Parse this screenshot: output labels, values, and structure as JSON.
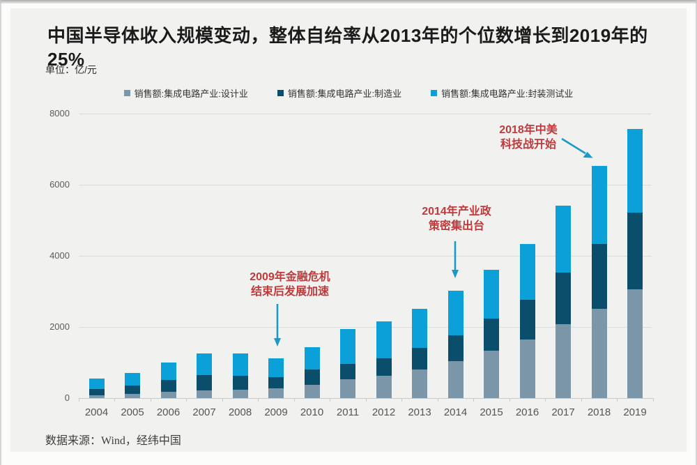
{
  "title": "中国半导体收入规模变动，整体自给率从2013年的个位数增长到2019年的25%",
  "unit_label": "单位：亿/元",
  "source_note": "数据来源：Wind，经纬中国",
  "colors": {
    "card_background": "#f1f1ef",
    "title_text": "#1b1b1b",
    "axis_text": "#5c5c5c",
    "grid_line": "#dcdcda",
    "annotation_red": "#c0393b",
    "arrow_cyan": "#1a9ac4",
    "series_design": "#7b96a8",
    "series_manufacturing": "#0b4e6b",
    "series_packaging": "#0ba0d8",
    "source_text": "#3d3d3d"
  },
  "chart_data": {
    "type": "bar",
    "stacked": true,
    "title": "中国半导体收入规模变动，整体自给率从2013年的个位数增长到2019年的25%",
    "unit": "亿/元",
    "xlabel": "",
    "ylabel": "",
    "ylim": [
      0,
      8000
    ],
    "yticks": [
      0,
      2000,
      4000,
      6000,
      8000
    ],
    "grid": true,
    "legend_position": "top",
    "categories": [
      "2004",
      "2005",
      "2006",
      "2007",
      "2008",
      "2009",
      "2010",
      "2011",
      "2012",
      "2013",
      "2014",
      "2015",
      "2016",
      "2017",
      "2018",
      "2019"
    ],
    "series": [
      {
        "name": "销售额:集成电路产业:设计业",
        "color": "#7b96a8",
        "values": [
          81.5,
          124.3,
          186.2,
          225.7,
          235.3,
          269.9,
          363.8,
          526.4,
          621.7,
          808.8,
          1047.4,
          1325.0,
          1644.3,
          2073.5,
          2519.3,
          3063.5
        ]
      },
      {
        "name": "销售额:集成电路产业:制造业",
        "color": "#0b4e6b",
        "values": [
          181.2,
          232.9,
          323.1,
          419.7,
          391.6,
          319.7,
          447.1,
          430.5,
          501.1,
          600.9,
          712.1,
          900.8,
          1126.9,
          1448.1,
          1818.2,
          2149.1
        ]
      },
      {
        "name": "销售额:集成电路产业:封装测试业",
        "color": "#0ba0d8",
        "values": [
          282.4,
          345.2,
          497.1,
          605.8,
          619.9,
          519.7,
          629.2,
          976.8,
          1035.7,
          1098.8,
          1255.9,
          1384.0,
          1564.3,
          1889.7,
          2193.9,
          2349.7
        ]
      }
    ],
    "totals": [
      545.1,
      702.4,
      1006.4,
      1251.2,
      1246.8,
      1109.3,
      1440.1,
      1933.7,
      2158.5,
      2508.5,
      3015.4,
      3609.8,
      4335.5,
      5411.3,
      6531.4,
      7562.3
    ],
    "annotations": [
      {
        "id": "ann-2009",
        "lines": [
          "2009年金融危机",
          "结束后发展加速"
        ],
        "target_year": "2009"
      },
      {
        "id": "ann-2014",
        "lines": [
          "2014年产业政",
          "策密集出台"
        ],
        "target_year": "2014"
      },
      {
        "id": "ann-2018",
        "lines": [
          "2018年中美",
          "科技战开始"
        ],
        "target_year": "2018"
      }
    ]
  }
}
